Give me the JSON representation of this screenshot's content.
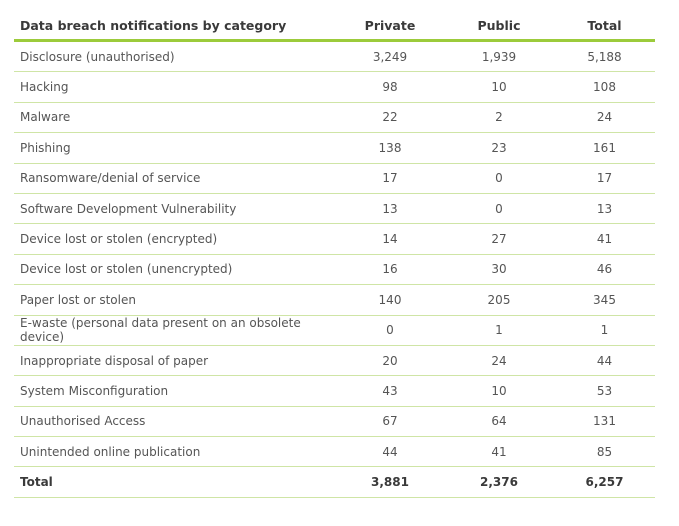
{
  "table": {
    "header": [
      "Data breach notifications by category",
      "Private",
      "Public",
      "Total"
    ],
    "rows": [
      [
        "Disclosure (unauthorised)",
        "3,249",
        "1,939",
        "5,188"
      ],
      [
        "Hacking",
        "98",
        "10",
        "108"
      ],
      [
        "Malware",
        "22",
        "2",
        "24"
      ],
      [
        "Phishing",
        "138",
        "23",
        "161"
      ],
      [
        "Ransomware/denial of service",
        "17",
        "0",
        "17"
      ],
      [
        "Software Development Vulnerability",
        "13",
        "0",
        "13"
      ],
      [
        "Device lost or stolen (encrypted)",
        "14",
        "27",
        "41"
      ],
      [
        "Device lost or stolen (unencrypted)",
        "16",
        "30",
        "46"
      ],
      [
        "Paper lost or stolen",
        "140",
        "205",
        "345"
      ],
      [
        "E-waste (personal data present on an obsolete device)",
        "0",
        "1",
        "1"
      ],
      [
        "Inappropriate disposal of paper",
        "20",
        "24",
        "44"
      ],
      [
        "System Misconfiguration",
        "43",
        "10",
        "53"
      ],
      [
        "Unauthorised Access",
        "67",
        "64",
        "131"
      ],
      [
        "Unintended online publication",
        "44",
        "41",
        "85"
      ]
    ],
    "total": [
      "Total",
      "3,881",
      "2,376",
      "6,257"
    ]
  }
}
